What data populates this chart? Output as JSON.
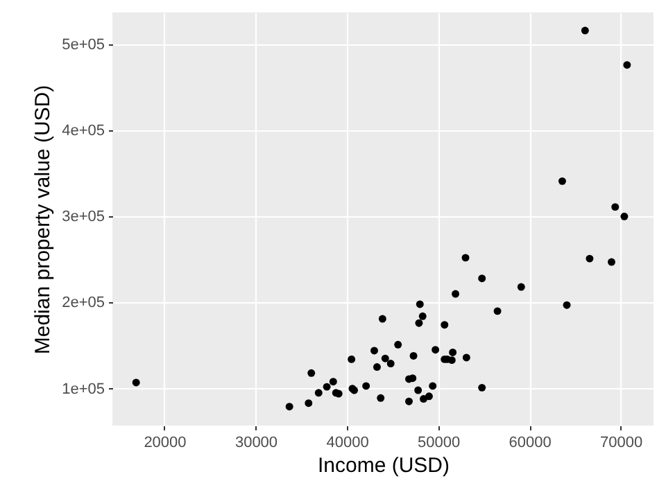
{
  "chart_data": {
    "type": "scatter",
    "xlabel": "Income (USD)",
    "ylabel": "Median property value (USD)",
    "xlim": [
      14300,
      73600
    ],
    "xticks": [
      20000,
      30000,
      40000,
      50000,
      60000,
      70000
    ],
    "ylim": [
      57000,
      537000
    ],
    "yticks": [
      {
        "value": 100000,
        "label": "1e+05"
      },
      {
        "value": 200000,
        "label": "2e+05"
      },
      {
        "value": 300000,
        "label": "3e+05"
      },
      {
        "value": 400000,
        "label": "4e+05"
      },
      {
        "value": 500000,
        "label": "5e+05"
      }
    ],
    "grid": true,
    "marker": "circle",
    "series": [
      {
        "color": "#000000",
        "x": [
          16900,
          33700,
          35800,
          36100,
          36900,
          37800,
          38500,
          38800,
          39100,
          40500,
          40600,
          40800,
          42100,
          43000,
          43300,
          43900,
          43700,
          44200,
          44800,
          45600,
          46800,
          46800,
          47200,
          47300,
          47800,
          48000,
          48300,
          47900,
          48400,
          49000,
          49400,
          49700,
          50700,
          50700,
          51000,
          51500,
          51600,
          51900,
          53100,
          53000,
          54800,
          54800,
          56500,
          59100,
          64100,
          66600,
          69000,
          66100,
          70700,
          63600,
          69400,
          70400
        ],
        "values": [
          107000,
          79000,
          83000,
          118000,
          95000,
          102000,
          108000,
          95000,
          94000,
          134000,
          100000,
          98000,
          103000,
          144000,
          125000,
          181000,
          89000,
          135000,
          129000,
          151000,
          85000,
          111000,
          112000,
          138000,
          98000,
          198000,
          184000,
          176000,
          88000,
          91000,
          103000,
          145000,
          174000,
          134000,
          134000,
          133000,
          142000,
          210000,
          136000,
          252000,
          101000,
          228000,
          190000,
          218000,
          197000,
          251000,
          247000,
          516000,
          476000,
          341000,
          311000,
          300000
        ]
      }
    ]
  }
}
